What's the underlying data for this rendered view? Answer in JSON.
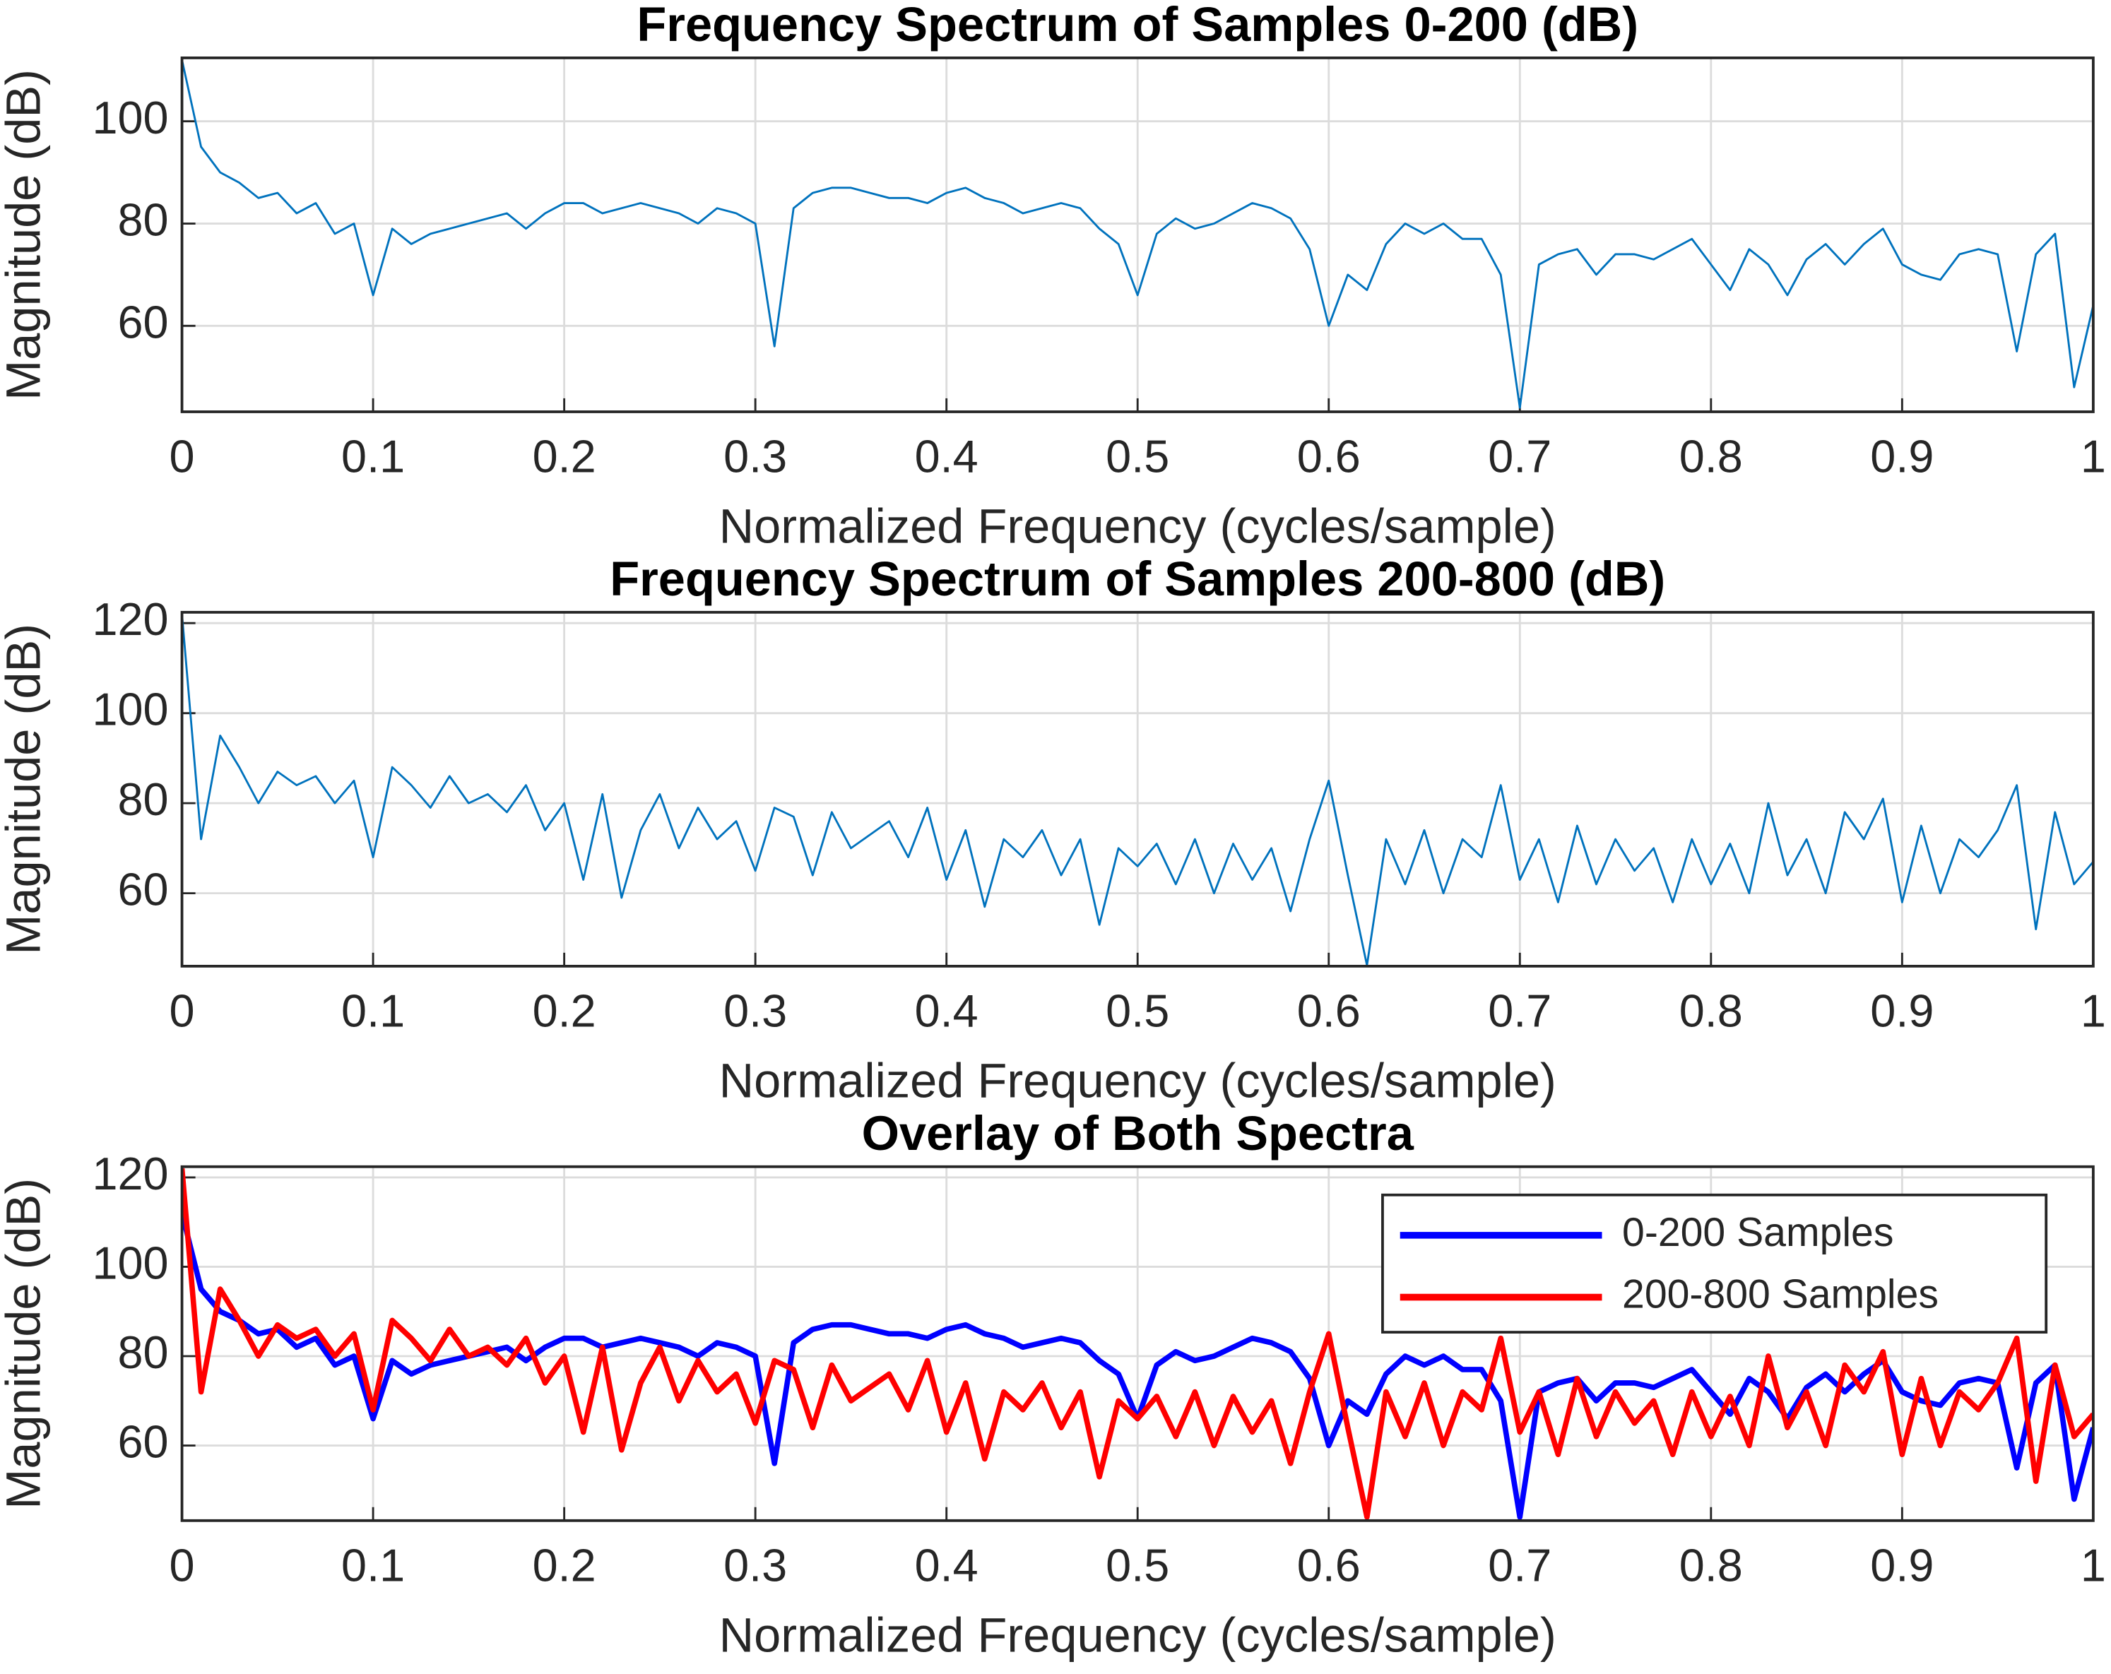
{
  "chart_data": [
    {
      "type": "line",
      "title": "Frequency Spectrum of Samples 0-200 (dB)",
      "xlabel": "Normalized Frequency (cycles/sample)",
      "ylabel": "Magnitude (dB)",
      "x": [
        0,
        0.01,
        0.02,
        0.03,
        0.04,
        0.05,
        0.06,
        0.07,
        0.08,
        0.09,
        0.1,
        0.11,
        0.12,
        0.13,
        0.14,
        0.15,
        0.16,
        0.17,
        0.18,
        0.19,
        0.2,
        0.21,
        0.22,
        0.23,
        0.24,
        0.25,
        0.26,
        0.27,
        0.28,
        0.29,
        0.3,
        0.31,
        0.32,
        0.33,
        0.34,
        0.35,
        0.36,
        0.37,
        0.38,
        0.39,
        0.4,
        0.41,
        0.42,
        0.43,
        0.44,
        0.45,
        0.46,
        0.47,
        0.48,
        0.49,
        0.5,
        0.51,
        0.52,
        0.53,
        0.54,
        0.55,
        0.56,
        0.57,
        0.58,
        0.59,
        0.6,
        0.61,
        0.62,
        0.63,
        0.64,
        0.65,
        0.66,
        0.67,
        0.68,
        0.69,
        0.7,
        0.71,
        0.72,
        0.73,
        0.74,
        0.75,
        0.76,
        0.77,
        0.78,
        0.79,
        0.8,
        0.81,
        0.82,
        0.83,
        0.84,
        0.85,
        0.86,
        0.87,
        0.88,
        0.89,
        0.9,
        0.91,
        0.92,
        0.93,
        0.94,
        0.95,
        0.96,
        0.97,
        0.98,
        0.99,
        1
      ],
      "values": [
        112,
        95,
        90,
        88,
        85,
        86,
        82,
        84,
        78,
        80,
        66,
        79,
        76,
        78,
        79,
        80,
        81,
        82,
        79,
        82,
        84,
        84,
        82,
        83,
        84,
        83,
        82,
        80,
        83,
        82,
        80,
        56,
        83,
        86,
        87,
        87,
        86,
        85,
        85,
        84,
        86,
        87,
        85,
        84,
        82,
        83,
        84,
        83,
        79,
        76,
        66,
        78,
        81,
        79,
        80,
        82,
        84,
        83,
        81,
        75,
        60,
        70,
        67,
        76,
        80,
        78,
        80,
        77,
        77,
        70,
        44,
        72,
        74,
        75,
        70,
        74,
        74,
        73,
        75,
        77,
        72,
        67,
        75,
        72,
        66,
        73,
        76,
        72,
        76,
        79,
        72,
        70,
        69,
        74,
        75,
        74,
        55,
        74,
        78,
        48,
        64
      ],
      "color": "#0072bd",
      "xlim": [
        0,
        1
      ],
      "ylim": [
        43.2,
        112.4
      ],
      "xticks": [
        0,
        0.1,
        0.2,
        0.3,
        0.4,
        0.5,
        0.6,
        0.7,
        0.8,
        0.9,
        1
      ],
      "yticks": [
        60,
        80,
        100
      ],
      "grid": true
    },
    {
      "type": "line",
      "title": "Frequency Spectrum of Samples 200-800 (dB)",
      "xlabel": "Normalized Frequency (cycles/sample)",
      "ylabel": "Magnitude (dB)",
      "x": [
        0,
        0.01,
        0.02,
        0.03,
        0.04,
        0.05,
        0.06,
        0.07,
        0.08,
        0.09,
        0.1,
        0.11,
        0.12,
        0.13,
        0.14,
        0.15,
        0.16,
        0.17,
        0.18,
        0.19,
        0.2,
        0.21,
        0.22,
        0.23,
        0.24,
        0.25,
        0.26,
        0.27,
        0.28,
        0.29,
        0.3,
        0.31,
        0.32,
        0.33,
        0.34,
        0.35,
        0.36,
        0.37,
        0.38,
        0.39,
        0.4,
        0.41,
        0.42,
        0.43,
        0.44,
        0.45,
        0.46,
        0.47,
        0.48,
        0.49,
        0.5,
        0.51,
        0.52,
        0.53,
        0.54,
        0.55,
        0.56,
        0.57,
        0.58,
        0.59,
        0.6,
        0.61,
        0.62,
        0.63,
        0.64,
        0.65,
        0.66,
        0.67,
        0.68,
        0.69,
        0.7,
        0.71,
        0.72,
        0.73,
        0.74,
        0.75,
        0.76,
        0.77,
        0.78,
        0.79,
        0.8,
        0.81,
        0.82,
        0.83,
        0.84,
        0.85,
        0.86,
        0.87,
        0.88,
        0.89,
        0.9,
        0.91,
        0.92,
        0.93,
        0.94,
        0.95,
        0.96,
        0.97,
        0.98,
        0.99,
        1
      ],
      "values": [
        122,
        72,
        95,
        88,
        80,
        87,
        84,
        86,
        80,
        85,
        68,
        88,
        84,
        79,
        86,
        80,
        82,
        78,
        84,
        74,
        80,
        63,
        82,
        59,
        74,
        82,
        70,
        79,
        72,
        76,
        65,
        79,
        77,
        64,
        78,
        70,
        73,
        76,
        68,
        79,
        63,
        74,
        57,
        72,
        68,
        74,
        64,
        72,
        53,
        70,
        66,
        71,
        62,
        72,
        60,
        71,
        63,
        70,
        56,
        72,
        85,
        64,
        44,
        72,
        62,
        74,
        60,
        72,
        68,
        84,
        63,
        72,
        58,
        75,
        62,
        72,
        65,
        70,
        58,
        72,
        62,
        71,
        60,
        80,
        64,
        72,
        60,
        78,
        72,
        81,
        58,
        75,
        60,
        72,
        68,
        74,
        84,
        52,
        78,
        62,
        67
      ],
      "color": "#0072bd",
      "xlim": [
        0,
        1
      ],
      "ylim": [
        43.8,
        122.4
      ],
      "xticks": [
        0,
        0.1,
        0.2,
        0.3,
        0.4,
        0.5,
        0.6,
        0.7,
        0.8,
        0.9,
        1
      ],
      "yticks": [
        60,
        80,
        100,
        120
      ],
      "grid": true
    },
    {
      "type": "line",
      "title": "Overlay of Both Spectra",
      "xlabel": "Normalized Frequency (cycles/sample)",
      "ylabel": "Magnitude (dB)",
      "x": [
        0,
        0.01,
        0.02,
        0.03,
        0.04,
        0.05,
        0.06,
        0.07,
        0.08,
        0.09,
        0.1,
        0.11,
        0.12,
        0.13,
        0.14,
        0.15,
        0.16,
        0.17,
        0.18,
        0.19,
        0.2,
        0.21,
        0.22,
        0.23,
        0.24,
        0.25,
        0.26,
        0.27,
        0.28,
        0.29,
        0.3,
        0.31,
        0.32,
        0.33,
        0.34,
        0.35,
        0.36,
        0.37,
        0.38,
        0.39,
        0.4,
        0.41,
        0.42,
        0.43,
        0.44,
        0.45,
        0.46,
        0.47,
        0.48,
        0.49,
        0.5,
        0.51,
        0.52,
        0.53,
        0.54,
        0.55,
        0.56,
        0.57,
        0.58,
        0.59,
        0.6,
        0.61,
        0.62,
        0.63,
        0.64,
        0.65,
        0.66,
        0.67,
        0.68,
        0.69,
        0.7,
        0.71,
        0.72,
        0.73,
        0.74,
        0.75,
        0.76,
        0.77,
        0.78,
        0.79,
        0.8,
        0.81,
        0.82,
        0.83,
        0.84,
        0.85,
        0.86,
        0.87,
        0.88,
        0.89,
        0.9,
        0.91,
        0.92,
        0.93,
        0.94,
        0.95,
        0.96,
        0.97,
        0.98,
        0.99,
        1
      ],
      "series": [
        {
          "name": "0-200 Samples",
          "color": "#0000ff",
          "values": [
            112,
            95,
            90,
            88,
            85,
            86,
            82,
            84,
            78,
            80,
            66,
            79,
            76,
            78,
            79,
            80,
            81,
            82,
            79,
            82,
            84,
            84,
            82,
            83,
            84,
            83,
            82,
            80,
            83,
            82,
            80,
            56,
            83,
            86,
            87,
            87,
            86,
            85,
            85,
            84,
            86,
            87,
            85,
            84,
            82,
            83,
            84,
            83,
            79,
            76,
            66,
            78,
            81,
            79,
            80,
            82,
            84,
            83,
            81,
            75,
            60,
            70,
            67,
            76,
            80,
            78,
            80,
            77,
            77,
            70,
            44,
            72,
            74,
            75,
            70,
            74,
            74,
            73,
            75,
            77,
            72,
            67,
            75,
            72,
            66,
            73,
            76,
            72,
            76,
            79,
            72,
            70,
            69,
            74,
            75,
            74,
            55,
            74,
            78,
            48,
            64
          ]
        },
        {
          "name": "200-800 Samples",
          "color": "#ff0000",
          "values": [
            122,
            72,
            95,
            88,
            80,
            87,
            84,
            86,
            80,
            85,
            68,
            88,
            84,
            79,
            86,
            80,
            82,
            78,
            84,
            74,
            80,
            63,
            82,
            59,
            74,
            82,
            70,
            79,
            72,
            76,
            65,
            79,
            77,
            64,
            78,
            70,
            73,
            76,
            68,
            79,
            63,
            74,
            57,
            72,
            68,
            74,
            64,
            72,
            53,
            70,
            66,
            71,
            62,
            72,
            60,
            71,
            63,
            70,
            56,
            72,
            85,
            64,
            44,
            72,
            62,
            74,
            60,
            72,
            68,
            84,
            63,
            72,
            58,
            75,
            62,
            72,
            65,
            70,
            58,
            72,
            62,
            71,
            60,
            80,
            64,
            72,
            60,
            78,
            72,
            81,
            58,
            75,
            60,
            72,
            68,
            74,
            84,
            52,
            78,
            62,
            67
          ]
        }
      ],
      "xlim": [
        0,
        1
      ],
      "ylim": [
        43.2,
        122.4
      ],
      "xticks": [
        0,
        0.1,
        0.2,
        0.3,
        0.4,
        0.5,
        0.6,
        0.7,
        0.8,
        0.9,
        1
      ],
      "yticks": [
        60,
        80,
        100,
        120
      ],
      "grid": true,
      "legend": "northeast"
    }
  ]
}
